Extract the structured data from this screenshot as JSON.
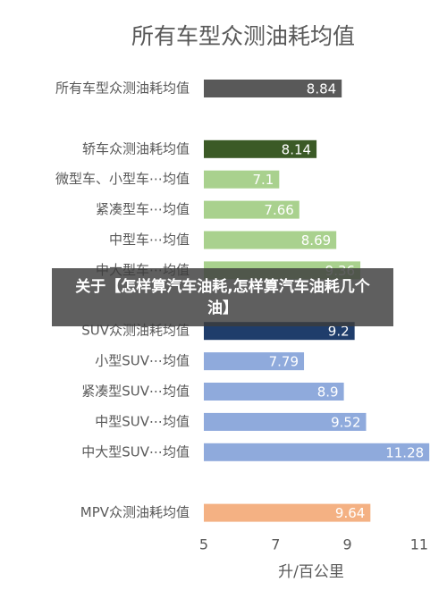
{
  "chart_data": {
    "type": "barh",
    "title": "所有车型众测油耗均值",
    "xlabel": "升/百公里",
    "categories": [
      "所有车型众测油耗均值",
      null,
      "轿车众测油耗均值",
      "微型车、小型车⋯均值",
      "紧凑型车⋯均值",
      "中型车⋯均值",
      "中大型车⋯均值",
      null,
      "SUV众测油耗均值",
      "小型SUV⋯均值",
      "紧凑型SUV⋯均值",
      "中型SUV⋯均值",
      "中大型SUV⋯均值",
      null,
      "MPV众测油耗均值"
    ],
    "values": [
      8.84,
      null,
      8.14,
      7.1,
      7.66,
      8.69,
      9.36,
      null,
      9.2,
      7.79,
      8.9,
      9.52,
      11.28,
      null,
      9.64
    ],
    "colors": [
      "#595959",
      null,
      "#3b5a26",
      "#a9d18e",
      "#a9d18e",
      "#a9d18e",
      "#a9d18e",
      null,
      "#1f3d6b",
      "#8faadc",
      "#8faadc",
      "#8faadc",
      "#8faadc",
      null,
      "#f4b183"
    ],
    "xlim": [
      5,
      11.4
    ],
    "xticks": [
      5,
      7,
      9,
      11
    ]
  },
  "overlay": {
    "text": "关于【怎样算汽车油耗,怎样算汽车油耗几个油】"
  }
}
